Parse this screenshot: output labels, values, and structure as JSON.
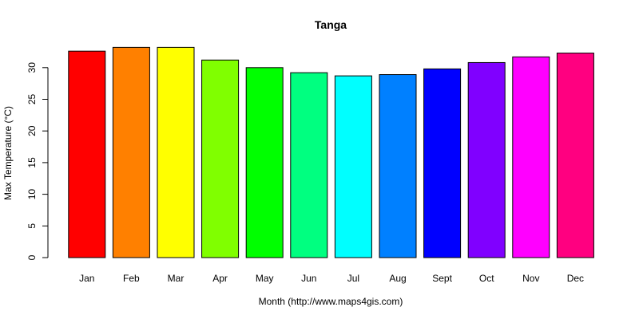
{
  "chart_data": {
    "type": "bar",
    "title": "Tanga",
    "xlabel": "Month (http://www.maps4gis.com)",
    "ylabel": "Max Temperature (°C)",
    "categories": [
      "Jan",
      "Feb",
      "Mar",
      "Apr",
      "May",
      "Jun",
      "Jul",
      "Aug",
      "Sept",
      "Oct",
      "Nov",
      "Dec"
    ],
    "values": [
      32.6,
      33.2,
      33.2,
      31.2,
      30.0,
      29.2,
      28.7,
      28.9,
      29.8,
      30.8,
      31.7,
      32.3
    ],
    "colors": [
      "#FF0000",
      "#FF8000",
      "#FFFF00",
      "#80FF00",
      "#00FF00",
      "#00FF80",
      "#00FFFF",
      "#0080FF",
      "#0000FF",
      "#8000FF",
      "#FF00FF",
      "#FF0080"
    ],
    "ylim": [
      0,
      33.2
    ],
    "yticks": [
      0,
      5,
      10,
      15,
      20,
      25,
      30
    ],
    "grid": false,
    "legend": "none"
  }
}
